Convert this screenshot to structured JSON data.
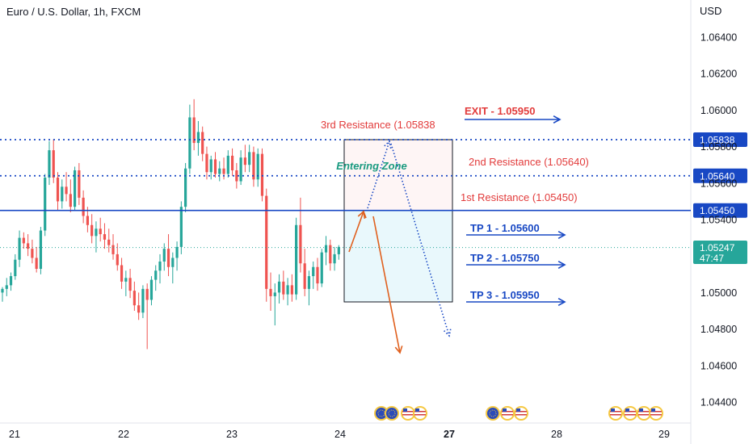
{
  "chart_data": {
    "type": "candlestick",
    "title": "Euro / U.S. Dollar, 1h, FXCM",
    "currency": "USD",
    "ylim": [
      1.0432,
      1.0658
    ],
    "y_ticks": [
      "1.06400",
      "1.06200",
      "1.06000",
      "1.05800",
      "1.05600",
      "1.05400",
      "1.05200",
      "1.05000",
      "1.04800",
      "1.04600",
      "1.04400"
    ],
    "x_ticks": [
      "21",
      "22",
      "23",
      "24",
      "27",
      "28",
      "29"
    ],
    "bold_x_tick": "27",
    "current_price": "1.05247",
    "countdown": "47:47",
    "colors": {
      "up": "#26a69a",
      "down": "#ef5350",
      "blue": "#1848c4",
      "orange": "#e0601e",
      "teal_text": "#1a9a80",
      "red_text": "#e23b3b"
    },
    "candles": [
      {
        "o": 1.05,
        "h": 1.0503,
        "l": 1.0495,
        "c": 1.0502
      },
      {
        "o": 1.0502,
        "h": 1.0508,
        "l": 1.0498,
        "c": 1.0504
      },
      {
        "o": 1.0504,
        "h": 1.0511,
        "l": 1.0501,
        "c": 1.0509
      },
      {
        "o": 1.0509,
        "h": 1.0521,
        "l": 1.0507,
        "c": 1.0518
      },
      {
        "o": 1.0518,
        "h": 1.0534,
        "l": 1.0514,
        "c": 1.053
      },
      {
        "o": 1.053,
        "h": 1.0533,
        "l": 1.0524,
        "c": 1.0527
      },
      {
        "o": 1.0527,
        "h": 1.0532,
        "l": 1.052,
        "c": 1.0524
      },
      {
        "o": 1.0524,
        "h": 1.0529,
        "l": 1.0516,
        "c": 1.0519
      },
      {
        "o": 1.0519,
        "h": 1.0525,
        "l": 1.0511,
        "c": 1.0513
      },
      {
        "o": 1.0513,
        "h": 1.0536,
        "l": 1.051,
        "c": 1.0534
      },
      {
        "o": 1.0534,
        "h": 1.0565,
        "l": 1.0531,
        "c": 1.0563
      },
      {
        "o": 1.0563,
        "h": 1.0583,
        "l": 1.0559,
        "c": 1.0578
      },
      {
        "o": 1.0578,
        "h": 1.0584,
        "l": 1.056,
        "c": 1.0563
      },
      {
        "o": 1.0563,
        "h": 1.0566,
        "l": 1.0545,
        "c": 1.055
      },
      {
        "o": 1.055,
        "h": 1.0562,
        "l": 1.0546,
        "c": 1.0558
      },
      {
        "o": 1.0558,
        "h": 1.0566,
        "l": 1.055,
        "c": 1.0554
      },
      {
        "o": 1.0554,
        "h": 1.0562,
        "l": 1.0544,
        "c": 1.0547
      },
      {
        "o": 1.0547,
        "h": 1.0569,
        "l": 1.0545,
        "c": 1.0567
      },
      {
        "o": 1.0567,
        "h": 1.0571,
        "l": 1.0548,
        "c": 1.0552
      },
      {
        "o": 1.0552,
        "h": 1.0556,
        "l": 1.0538,
        "c": 1.0542
      },
      {
        "o": 1.0542,
        "h": 1.0547,
        "l": 1.0533,
        "c": 1.0537
      },
      {
        "o": 1.0537,
        "h": 1.0543,
        "l": 1.0527,
        "c": 1.0531
      },
      {
        "o": 1.0531,
        "h": 1.0539,
        "l": 1.0522,
        "c": 1.0535
      },
      {
        "o": 1.0535,
        "h": 1.0541,
        "l": 1.0528,
        "c": 1.0532
      },
      {
        "o": 1.0532,
        "h": 1.0538,
        "l": 1.0524,
        "c": 1.0529
      },
      {
        "o": 1.0529,
        "h": 1.0535,
        "l": 1.0522,
        "c": 1.0526
      },
      {
        "o": 1.0526,
        "h": 1.0532,
        "l": 1.0518,
        "c": 1.0521
      },
      {
        "o": 1.0521,
        "h": 1.0527,
        "l": 1.0512,
        "c": 1.0515
      },
      {
        "o": 1.0515,
        "h": 1.0519,
        "l": 1.0502,
        "c": 1.0506
      },
      {
        "o": 1.0506,
        "h": 1.0512,
        "l": 1.0498,
        "c": 1.0508
      },
      {
        "o": 1.0508,
        "h": 1.0513,
        "l": 1.0497,
        "c": 1.0501
      },
      {
        "o": 1.0501,
        "h": 1.0506,
        "l": 1.049,
        "c": 1.0493
      },
      {
        "o": 1.0493,
        "h": 1.05,
        "l": 1.0485,
        "c": 1.0489
      },
      {
        "o": 1.0489,
        "h": 1.0504,
        "l": 1.0486,
        "c": 1.0502
      },
      {
        "o": 1.0502,
        "h": 1.0505,
        "l": 1.0469,
        "c": 1.0496
      },
      {
        "o": 1.0496,
        "h": 1.0509,
        "l": 1.0493,
        "c": 1.0507
      },
      {
        "o": 1.0507,
        "h": 1.0515,
        "l": 1.0501,
        "c": 1.0512
      },
      {
        "o": 1.0512,
        "h": 1.0521,
        "l": 1.0505,
        "c": 1.0517
      },
      {
        "o": 1.0517,
        "h": 1.0527,
        "l": 1.0512,
        "c": 1.0524
      },
      {
        "o": 1.0524,
        "h": 1.0532,
        "l": 1.0509,
        "c": 1.0514
      },
      {
        "o": 1.0514,
        "h": 1.0522,
        "l": 1.0505,
        "c": 1.0519
      },
      {
        "o": 1.0519,
        "h": 1.0528,
        "l": 1.0512,
        "c": 1.0525
      },
      {
        "o": 1.0525,
        "h": 1.055,
        "l": 1.0521,
        "c": 1.0547
      },
      {
        "o": 1.0547,
        "h": 1.0571,
        "l": 1.0544,
        "c": 1.0568
      },
      {
        "o": 1.0568,
        "h": 1.0603,
        "l": 1.0565,
        "c": 1.0596
      },
      {
        "o": 1.0596,
        "h": 1.0606,
        "l": 1.0578,
        "c": 1.0582
      },
      {
        "o": 1.0582,
        "h": 1.0594,
        "l": 1.0575,
        "c": 1.0588
      },
      {
        "o": 1.0588,
        "h": 1.0591,
        "l": 1.0572,
        "c": 1.0576
      },
      {
        "o": 1.0576,
        "h": 1.058,
        "l": 1.0562,
        "c": 1.0566
      },
      {
        "o": 1.0566,
        "h": 1.0575,
        "l": 1.0562,
        "c": 1.0573
      },
      {
        "o": 1.0573,
        "h": 1.0577,
        "l": 1.0563,
        "c": 1.0565
      },
      {
        "o": 1.0565,
        "h": 1.0572,
        "l": 1.0561,
        "c": 1.0568
      },
      {
        "o": 1.0568,
        "h": 1.0574,
        "l": 1.0562,
        "c": 1.0565
      },
      {
        "o": 1.0565,
        "h": 1.0578,
        "l": 1.0563,
        "c": 1.0575
      },
      {
        "o": 1.0575,
        "h": 1.0579,
        "l": 1.0564,
        "c": 1.0567
      },
      {
        "o": 1.0567,
        "h": 1.0571,
        "l": 1.0557,
        "c": 1.0561
      },
      {
        "o": 1.0561,
        "h": 1.0578,
        "l": 1.0559,
        "c": 1.0574
      },
      {
        "o": 1.0574,
        "h": 1.0581,
        "l": 1.0566,
        "c": 1.057
      },
      {
        "o": 1.057,
        "h": 1.0581,
        "l": 1.0566,
        "c": 1.0577
      },
      {
        "o": 1.0577,
        "h": 1.058,
        "l": 1.0558,
        "c": 1.0562
      },
      {
        "o": 1.0562,
        "h": 1.0579,
        "l": 1.0558,
        "c": 1.0576
      },
      {
        "o": 1.0576,
        "h": 1.0579,
        "l": 1.055,
        "c": 1.0553
      },
      {
        "o": 1.0553,
        "h": 1.0557,
        "l": 1.0495,
        "c": 1.0502
      },
      {
        "o": 1.0502,
        "h": 1.0511,
        "l": 1.049,
        "c": 1.0498
      },
      {
        "o": 1.0498,
        "h": 1.0505,
        "l": 1.0482,
        "c": 1.05
      },
      {
        "o": 1.05,
        "h": 1.051,
        "l": 1.0494,
        "c": 1.0506
      },
      {
        "o": 1.0506,
        "h": 1.0512,
        "l": 1.0496,
        "c": 1.0499
      },
      {
        "o": 1.0499,
        "h": 1.0508,
        "l": 1.0493,
        "c": 1.0504
      },
      {
        "o": 1.0504,
        "h": 1.051,
        "l": 1.0495,
        "c": 1.0499
      },
      {
        "o": 1.0499,
        "h": 1.0541,
        "l": 1.0496,
        "c": 1.0537
      },
      {
        "o": 1.0537,
        "h": 1.0552,
        "l": 1.0511,
        "c": 1.0516
      },
      {
        "o": 1.0516,
        "h": 1.0524,
        "l": 1.0498,
        "c": 1.0502
      },
      {
        "o": 1.0502,
        "h": 1.0512,
        "l": 1.0493,
        "c": 1.0509
      },
      {
        "o": 1.0509,
        "h": 1.0517,
        "l": 1.0502,
        "c": 1.0514
      },
      {
        "o": 1.0514,
        "h": 1.0519,
        "l": 1.0501,
        "c": 1.0505
      },
      {
        "o": 1.0505,
        "h": 1.0524,
        "l": 1.0503,
        "c": 1.0522
      },
      {
        "o": 1.0522,
        "h": 1.0531,
        "l": 1.0515,
        "c": 1.0526
      },
      {
        "o": 1.0526,
        "h": 1.0529,
        "l": 1.0512,
        "c": 1.0516
      },
      {
        "o": 1.0516,
        "h": 1.0525,
        "l": 1.0512,
        "c": 1.0521
      },
      {
        "o": 1.0521,
        "h": 1.0526,
        "l": 1.0518,
        "c": 1.0525
      }
    ],
    "levels": [
      {
        "price": 1.05838,
        "label": "1.05838",
        "style": "dotted"
      },
      {
        "price": 1.0564,
        "label": "1.05640",
        "style": "dotted"
      },
      {
        "price": 1.0545,
        "label": "1.05450",
        "style": "solid"
      }
    ],
    "annotations": {
      "entering_zone": "Entering Zone",
      "exit": "EXIT - 1.05950",
      "resistance3": "3rd Resistance (1.05838",
      "resistance2": "2nd Resistance (1.05640)",
      "resistance1": "1st Resistance (1.05450)",
      "tp1": "TP 1 - 1.05600",
      "tp2": "TP 2 - 1.05750",
      "tp3": "TP 3 - 1.05950"
    },
    "event_icons": [
      "eu-flag-icon",
      "us-flag-icon",
      "eu-flag-icon",
      "us-flag-icon",
      "eu-flag-icon",
      "us-flag-icon",
      "us-flag-icon"
    ]
  }
}
